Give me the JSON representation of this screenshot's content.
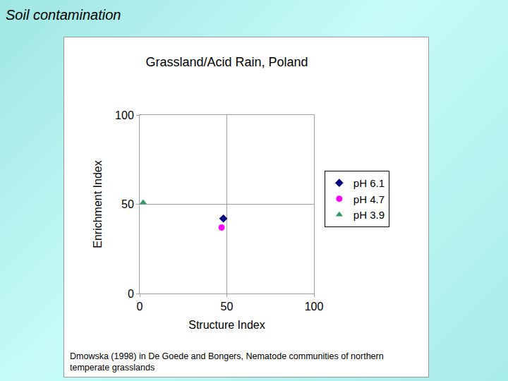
{
  "heading": "Soil contamination",
  "chart_data": {
    "type": "scatter",
    "title": "Grassland/Acid Rain, Poland",
    "x_label": "Structure Index",
    "y_label": "Enrichment Index",
    "xlim": [
      0,
      100
    ],
    "xticks": [
      0,
      50,
      100
    ],
    "ylim": [
      0,
      100
    ],
    "yticks": [
      0,
      50,
      100
    ],
    "grid": true,
    "legend": "right",
    "series": [
      {
        "name": "pH 6.1",
        "color": "#000080",
        "marker": "diamond",
        "x": [
          48
        ],
        "values": [
          42
        ]
      },
      {
        "name": "pH 4.7",
        "color": "#ff00ff",
        "marker": "circle",
        "x": [
          47
        ],
        "values": [
          37
        ]
      },
      {
        "name": "pH 3.9",
        "color": "#339966",
        "marker": "triangle-up",
        "x": [
          2
        ],
        "values": [
          51
        ]
      }
    ],
    "annotations": [
      "Dmowska (1998) in De Goede and Bongers, Nematode communities of northern temperate grasslands"
    ]
  }
}
